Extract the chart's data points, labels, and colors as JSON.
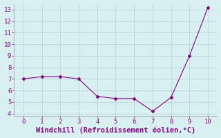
{
  "x": [
    0,
    1,
    2,
    3,
    4,
    5,
    6,
    7,
    8,
    9,
    10
  ],
  "y": [
    7.0,
    7.2,
    7.2,
    7.0,
    5.5,
    5.3,
    5.3,
    4.2,
    5.4,
    9.0,
    13.2
  ],
  "line_color": "#880088",
  "marker": "D",
  "marker_size": 2.5,
  "background_color": "#d8f0f0",
  "grid_color": "#b8d8d8",
  "axis_color": "#aaaaaa",
  "xlabel": "Windchill (Refroidissement éolien,°C)",
  "xlabel_fontsize": 7.5,
  "xlabel_color": "#880088",
  "tick_color": "#880088",
  "ylim": [
    3.8,
    13.5
  ],
  "xlim": [
    -0.5,
    10.5
  ],
  "yticks": [
    4,
    5,
    6,
    7,
    8,
    9,
    10,
    11,
    12,
    13
  ],
  "xticks": [
    0,
    1,
    2,
    3,
    4,
    5,
    6,
    7,
    8,
    9,
    10
  ],
  "font_family": "monospace"
}
